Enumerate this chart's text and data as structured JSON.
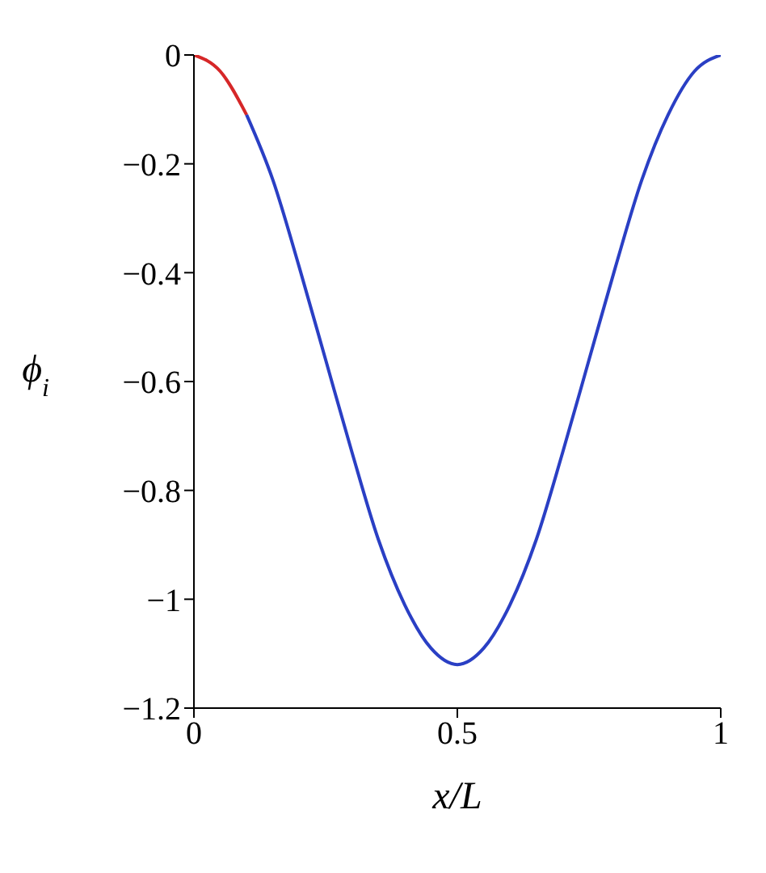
{
  "chart_data": {
    "type": "line",
    "xlabel": "x/L",
    "ylabel": "ϕ$_{i}$",
    "xlim": [
      0,
      1
    ],
    "xticks": [
      0,
      0.5,
      1
    ],
    "ylim": [
      -1.2,
      0
    ],
    "yticks": [
      0,
      -0.2,
      -0.4,
      -0.6,
      -0.8,
      -1,
      -1.2
    ],
    "grid": false,
    "marker": "none",
    "line_style": "solid",
    "series": [
      {
        "color": "#d62728",
        "x": [
          0,
          0.05,
          0.1
        ],
        "values": [
          0,
          -0.03,
          -0.11
        ]
      },
      {
        "color": "#2a3fc4",
        "x": [
          0.1,
          0.15,
          0.2,
          0.25,
          0.3,
          0.35,
          0.4,
          0.45,
          0.5,
          0.55,
          0.6,
          0.65,
          0.7,
          0.75,
          0.8,
          0.85,
          0.9,
          0.95,
          1
        ],
        "values": [
          -0.11,
          -0.23,
          -0.39,
          -0.56,
          -0.73,
          -0.89,
          -1.01,
          -1.09,
          -1.12,
          -1.09,
          -1.01,
          -0.89,
          -0.73,
          -0.56,
          -0.39,
          -0.23,
          -0.11,
          -0.03,
          0
        ]
      }
    ]
  }
}
